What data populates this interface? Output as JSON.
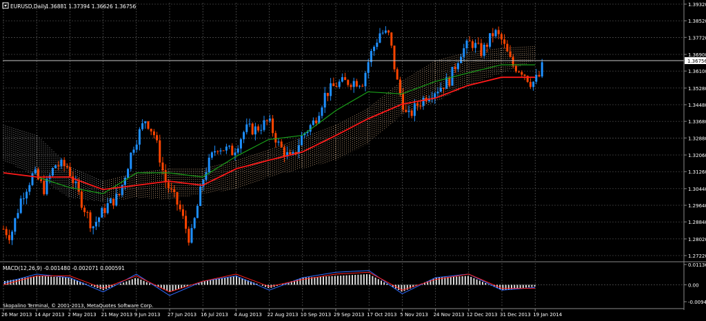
{
  "window": {
    "symbol_caption": "EURUSD,Daily",
    "ohlc_caption": "1.36881 1.37394 1.36626 1.36756",
    "last_price_label": "1.36756"
  },
  "macd_panel": {
    "caption": "MACD(12,26,9) -0.001480 -0.002071 0.000591",
    "scale_labels": [
      "0.011365",
      "0.00",
      "-0.009475"
    ]
  },
  "copyright": "Skopalino Terminal, © 2001-2013, MetaQuotes Software Corp.",
  "colors": {
    "background": "#000000",
    "grid": "#6b6b6b",
    "bull_candle": "#1e90ff",
    "bear_candle": "#ff4500",
    "kijun_sen": "#ff1a1a",
    "tenkan_sen": "#1aa31a",
    "cloud_bull": "#ffd0a0",
    "cloud_bear": "#cfcfcf",
    "macd_histogram": "#dcdcdc",
    "macd_line": "#2f6bff",
    "signal_line": "#ff2020",
    "text": "#ffffff"
  },
  "chart_data": {
    "type": "candlestick",
    "symbol": "EURUSD",
    "timeframe": "Daily",
    "y_ticks": [
      "1.39320",
      "1.38520",
      "1.37720",
      "1.36900",
      "1.36100",
      "1.35280",
      "1.34480",
      "1.33680",
      "1.32880",
      "1.32060",
      "1.31260",
      "1.30440",
      "1.29640",
      "1.28840",
      "1.28020",
      "1.27220"
    ],
    "ylim": [
      1.2722,
      1.3932
    ],
    "x_ticks": [
      "26 Mar 2013",
      "14 Apr 2013",
      "2 May 2013",
      "21 May 2013",
      "9 Jun 2013",
      "27 Jun 2013",
      "16 Jul 2013",
      "4 Aug 2013",
      "22 Aug 2013",
      "10 Sep 2013",
      "29 Sep 2013",
      "17 Oct 2013",
      "5 Nov 2013",
      "24 Nov 2013",
      "12 Dec 2013",
      "31 Dec 2013",
      "19 Jan 2014"
    ],
    "price_path": [
      {
        "date": "26 Mar 2013",
        "price": 1.285
      },
      {
        "date": "30 Mar 2013",
        "price": 1.2815
      },
      {
        "date": "5 Apr 2013",
        "price": 1.3
      },
      {
        "date": "12 Apr 2013",
        "price": 1.312
      },
      {
        "date": "18 Apr 2013",
        "price": 1.304
      },
      {
        "date": "24 Apr 2013",
        "price": 1.316
      },
      {
        "date": "1 May 2013",
        "price": 1.315
      },
      {
        "date": "9 May 2013",
        "price": 1.298
      },
      {
        "date": "15 May 2013",
        "price": 1.286
      },
      {
        "date": "23 May 2013",
        "price": 1.296
      },
      {
        "date": "30 May 2013",
        "price": 1.301
      },
      {
        "date": "7 Jun 2013",
        "price": 1.325
      },
      {
        "date": "14 Jun 2013",
        "price": 1.338
      },
      {
        "date": "19 Jun 2013",
        "price": 1.33
      },
      {
        "date": "25 Jun 2013",
        "price": 1.308
      },
      {
        "date": "3 Jul 2013",
        "price": 1.295
      },
      {
        "date": "9 Jul 2013",
        "price": 1.279
      },
      {
        "date": "17 Jul 2013",
        "price": 1.312
      },
      {
        "date": "24 Jul 2013",
        "price": 1.325
      },
      {
        "date": "2 Aug 2013",
        "price": 1.322
      },
      {
        "date": "9 Aug 2013",
        "price": 1.333
      },
      {
        "date": "15 Aug 2013",
        "price": 1.333
      },
      {
        "date": "22 Aug 2013",
        "price": 1.337
      },
      {
        "date": "28 Aug 2013",
        "price": 1.325
      },
      {
        "date": "4 Sep 2013",
        "price": 1.318
      },
      {
        "date": "10 Sep 2013",
        "price": 1.33
      },
      {
        "date": "17 Sep 2013",
        "price": 1.337
      },
      {
        "date": "23 Sep 2013",
        "price": 1.35
      },
      {
        "date": "30 Sep 2013",
        "price": 1.355
      },
      {
        "date": "7 Oct 2013",
        "price": 1.356
      },
      {
        "date": "14 Oct 2013",
        "price": 1.356
      },
      {
        "date": "18 Oct 2013",
        "price": 1.368
      },
      {
        "date": "24 Oct 2013",
        "price": 1.38
      },
      {
        "date": "29 Oct 2013",
        "price": 1.378
      },
      {
        "date": "2 Nov 2013",
        "price": 1.357
      },
      {
        "date": "8 Nov 2013",
        "price": 1.338
      },
      {
        "date": "14 Nov 2013",
        "price": 1.345
      },
      {
        "date": "20 Nov 2013",
        "price": 1.35
      },
      {
        "date": "26 Nov 2013",
        "price": 1.353
      },
      {
        "date": "2 Dec 2013",
        "price": 1.357
      },
      {
        "date": "8 Dec 2013",
        "price": 1.37
      },
      {
        "date": "14 Dec 2013",
        "price": 1.375
      },
      {
        "date": "20 Dec 2013",
        "price": 1.37
      },
      {
        "date": "27 Dec 2013",
        "price": 1.38
      },
      {
        "date": "31 Dec 2013",
        "price": 1.376
      },
      {
        "date": "6 Jan 2014",
        "price": 1.364
      },
      {
        "date": "12 Jan 2014",
        "price": 1.361
      },
      {
        "date": "17 Jan 2014",
        "price": 1.355
      },
      {
        "date": "22 Jan 2014",
        "price": 1.359
      },
      {
        "date": "24 Jan 2014",
        "price": 1.3676
      }
    ],
    "kijun_sen": [
      {
        "date": "26 Mar 2013",
        "value": 1.312
      },
      {
        "date": "14 Apr 2013",
        "value": 1.31
      },
      {
        "date": "2 May 2013",
        "value": 1.31
      },
      {
        "date": "21 May 2013",
        "value": 1.304
      },
      {
        "date": "9 Jun 2013",
        "value": 1.306
      },
      {
        "date": "27 Jun 2013",
        "value": 1.308
      },
      {
        "date": "16 Jul 2013",
        "value": 1.306
      },
      {
        "date": "4 Aug 2013",
        "value": 1.314
      },
      {
        "date": "22 Aug 2013",
        "value": 1.318
      },
      {
        "date": "10 Sep 2013",
        "value": 1.322
      },
      {
        "date": "29 Sep 2013",
        "value": 1.33
      },
      {
        "date": "17 Oct 2013",
        "value": 1.338
      },
      {
        "date": "5 Nov 2013",
        "value": 1.345
      },
      {
        "date": "24 Nov 2013",
        "value": 1.348
      },
      {
        "date": "12 Dec 2013",
        "value": 1.354
      },
      {
        "date": "31 Dec 2013",
        "value": 1.358
      },
      {
        "date": "19 Jan 2014",
        "value": 1.358
      }
    ],
    "tenkan_sen": [
      {
        "date": "26 Mar 2013",
        "value": 1.312
      },
      {
        "date": "14 Apr 2013",
        "value": 1.31
      },
      {
        "date": "2 May 2013",
        "value": 1.305
      },
      {
        "date": "21 May 2013",
        "value": 1.302
      },
      {
        "date": "9 Jun 2013",
        "value": 1.312
      },
      {
        "date": "27 Jun 2013",
        "value": 1.312
      },
      {
        "date": "16 Jul 2013",
        "value": 1.31
      },
      {
        "date": "4 Aug 2013",
        "value": 1.32
      },
      {
        "date": "22 Aug 2013",
        "value": 1.328
      },
      {
        "date": "10 Sep 2013",
        "value": 1.33
      },
      {
        "date": "29 Sep 2013",
        "value": 1.342
      },
      {
        "date": "17 Oct 2013",
        "value": 1.351
      },
      {
        "date": "5 Nov 2013",
        "value": 1.35
      },
      {
        "date": "24 Nov 2013",
        "value": 1.356
      },
      {
        "date": "12 Dec 2013",
        "value": 1.36
      },
      {
        "date": "31 Dec 2013",
        "value": 1.364
      },
      {
        "date": "19 Jan 2014",
        "value": 1.364
      }
    ],
    "cloud": [
      {
        "date": "26 Mar 2013",
        "top": 1.335,
        "bottom": 1.318
      },
      {
        "date": "14 Apr 2013",
        "top": 1.33,
        "bottom": 1.31
      },
      {
        "date": "2 May 2013",
        "top": 1.315,
        "bottom": 1.3
      },
      {
        "date": "21 May 2013",
        "top": 1.308,
        "bottom": 1.298
      },
      {
        "date": "9 Jun 2013",
        "top": 1.312,
        "bottom": 1.3
      },
      {
        "date": "27 Jun 2013",
        "top": 1.314,
        "bottom": 1.299
      },
      {
        "date": "16 Jul 2013",
        "top": 1.314,
        "bottom": 1.302
      },
      {
        "date": "4 Aug 2013",
        "top": 1.318,
        "bottom": 1.304
      },
      {
        "date": "22 Aug 2013",
        "top": 1.323,
        "bottom": 1.31
      },
      {
        "date": "10 Sep 2013",
        "top": 1.329,
        "bottom": 1.314
      },
      {
        "date": "29 Sep 2013",
        "top": 1.335,
        "bottom": 1.318
      },
      {
        "date": "17 Oct 2013",
        "top": 1.343,
        "bottom": 1.326
      },
      {
        "date": "5 Nov 2013",
        "top": 1.356,
        "bottom": 1.34
      },
      {
        "date": "24 Nov 2013",
        "top": 1.366,
        "bottom": 1.346
      },
      {
        "date": "12 Dec 2013",
        "top": 1.37,
        "bottom": 1.354
      },
      {
        "date": "31 Dec 2013",
        "top": 1.372,
        "bottom": 1.36
      },
      {
        "date": "19 Jan 2014",
        "top": 1.373,
        "bottom": 1.366
      }
    ],
    "macd": {
      "ylim": [
        -0.009475,
        0.011365
      ],
      "histogram": [
        0.002,
        0.005,
        0.004,
        -0.003,
        0.004,
        -0.004,
        0.002,
        0.005,
        -0.002,
        0.004,
        0.005,
        0.006,
        -0.004,
        0.004,
        0.005,
        -0.003,
        -0.001
      ],
      "macd_line": [
        0.001,
        0.006,
        0.004,
        -0.004,
        0.006,
        -0.006,
        0.002,
        0.005,
        -0.003,
        0.004,
        0.007,
        0.008,
        -0.005,
        0.004,
        0.006,
        -0.003,
        -0.0015
      ],
      "signal_line": [
        0.0,
        0.005,
        0.005,
        -0.002,
        0.005,
        -0.004,
        0.002,
        0.006,
        -0.001,
        0.003,
        0.006,
        0.007,
        -0.003,
        0.003,
        0.006,
        -0.002,
        -0.002
      ]
    }
  }
}
